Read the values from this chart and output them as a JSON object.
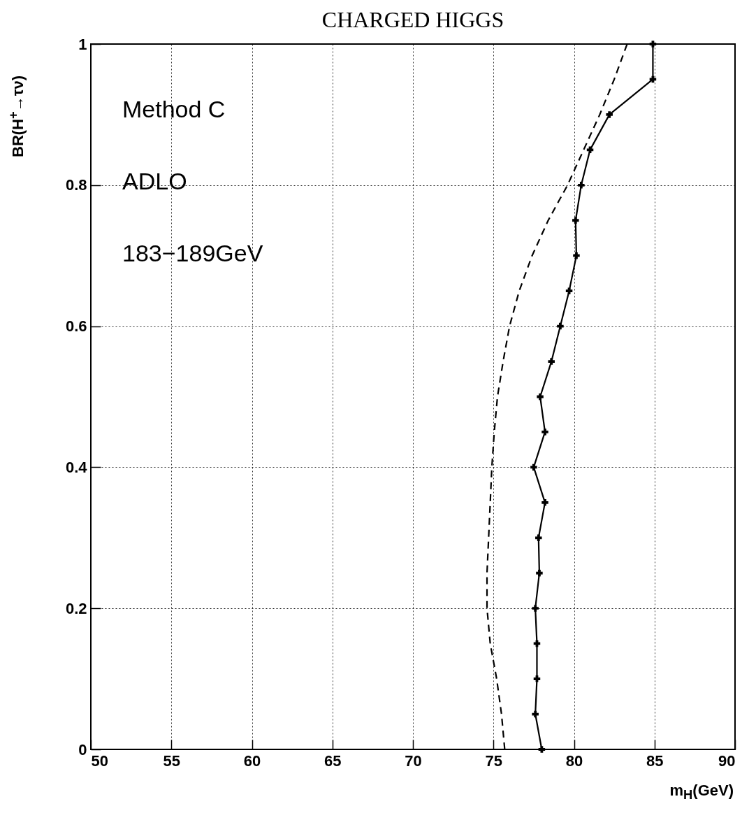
{
  "chart_data": {
    "type": "line",
    "title": "CHARGED HIGGS",
    "xlabel": "m$_{H}$(GeV)",
    "ylabel": "BR(H$^{+}$→τν)",
    "annotations": [
      "Method C",
      "ADLO",
      "183−189GeV"
    ],
    "xlim": [
      50,
      90
    ],
    "xticks": [
      50,
      55,
      60,
      65,
      70,
      75,
      80,
      85,
      90
    ],
    "ylim": [
      0,
      1
    ],
    "yticks": [
      0,
      0.2,
      0.4,
      0.6,
      0.8,
      1
    ],
    "grid": true,
    "series": [
      {
        "color": "#000000",
        "marker": "cross",
        "line_style": "solid",
        "x": [
          78.0,
          77.6,
          77.7,
          77.7,
          77.6,
          77.85,
          77.8,
          78.2,
          77.5,
          78.2,
          77.9,
          78.6,
          79.15,
          79.7,
          80.15,
          80.1,
          80.45,
          81.0,
          82.2,
          84.9,
          84.9
        ],
        "values": [
          0,
          0.05,
          0.1,
          0.15,
          0.2,
          0.25,
          0.3,
          0.35,
          0.4,
          0.45,
          0.5,
          0.55,
          0.6,
          0.65,
          0.7,
          0.75,
          0.8,
          0.85,
          0.9,
          0.95,
          1.0
        ]
      },
      {
        "color": "#000000",
        "marker": "none",
        "line_style": "dashed",
        "x": [
          75.7,
          75.5,
          75.2,
          74.8,
          74.6,
          74.6,
          74.7,
          74.8,
          74.9,
          75.05,
          75.25,
          75.6,
          76.0,
          76.6,
          77.4,
          78.4,
          79.6,
          80.6,
          81.6,
          82.5,
          83.3
        ],
        "values": [
          0,
          0.05,
          0.1,
          0.15,
          0.2,
          0.25,
          0.3,
          0.35,
          0.4,
          0.45,
          0.5,
          0.55,
          0.6,
          0.65,
          0.7,
          0.75,
          0.8,
          0.85,
          0.9,
          0.95,
          1.0
        ]
      }
    ]
  }
}
